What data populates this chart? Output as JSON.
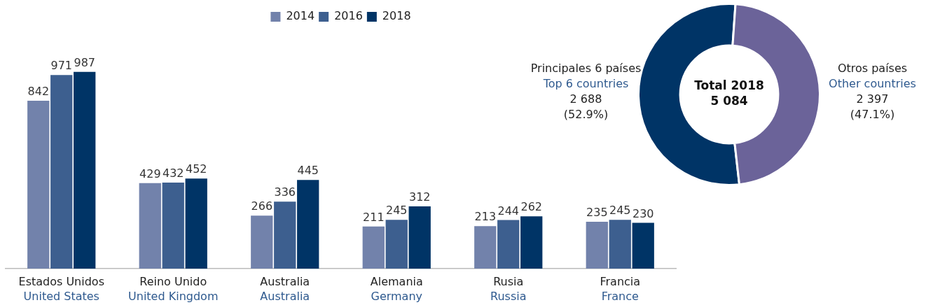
{
  "chart_data": [
    {
      "type": "bar",
      "categories": [
        "Estados Unidos\nUnited States",
        "Reino Unido\nUnited Kingdom",
        "Australia\nAustralia",
        "Alemania\nGermany",
        "Rusia\nRussia",
        "Francia\nFrance"
      ],
      "series": [
        {
          "name": "2014",
          "color": "#7282ab",
          "values": [
            842,
            429,
            266,
            211,
            213,
            235
          ]
        },
        {
          "name": "2016",
          "color": "#3d5f8f",
          "values": [
            971,
            432,
            336,
            245,
            244,
            245
          ]
        },
        {
          "name": "2018",
          "color": "#003466",
          "values": [
            987,
            452,
            445,
            312,
            262,
            230
          ]
        }
      ],
      "data_labels": true,
      "legend": "top",
      "grid": false
    },
    {
      "type": "donut",
      "categories": [
        "Principales 6 países\nTop 6 countries",
        "Otros países\nOther countries"
      ],
      "values": [
        52.9,
        47.1
      ],
      "colors": [
        "#003466",
        "#6b6399"
      ],
      "value_labels": [
        "2 688\n(52.9%)",
        "2 397\n(47.1%)"
      ],
      "annotations": [
        "Total 2018\n5 084"
      ],
      "legend": false
    }
  ]
}
